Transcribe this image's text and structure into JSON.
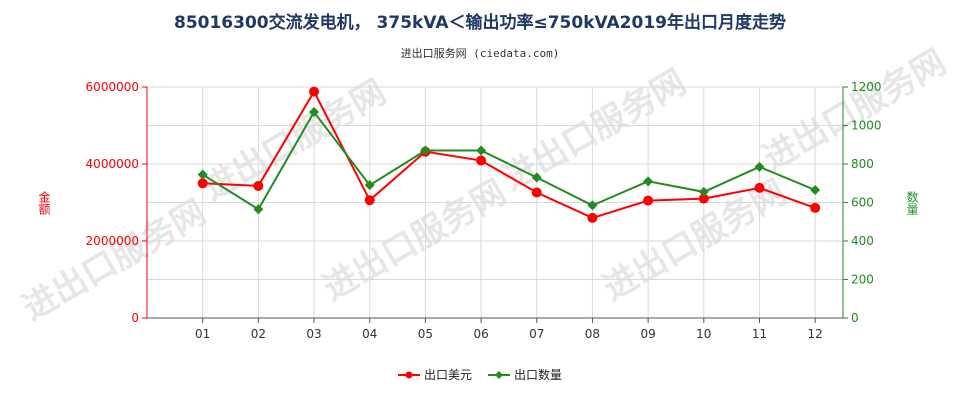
{
  "chart_data": {
    "type": "line",
    "title": "85016300交流发电机， 375kVA＜输出功率≤750kVA2019年出口月度走势",
    "subtitle": "进出口服务网 (ciedata.com)",
    "categories": [
      "01",
      "02",
      "03",
      "04",
      "05",
      "06",
      "07",
      "08",
      "09",
      "10",
      "11",
      "12"
    ],
    "y_left": {
      "label": "金额",
      "min": 0,
      "max": 6000000,
      "ticks": [
        0,
        2000000,
        4000000,
        6000000
      ],
      "tick_labels": [
        "0",
        "2000000",
        "4000000",
        "6000000"
      ]
    },
    "y_right": {
      "label": "数量",
      "min": 0,
      "max": 1200,
      "ticks": [
        0,
        200,
        400,
        600,
        800,
        1000,
        1200
      ],
      "tick_labels": [
        "0",
        "200",
        "400",
        "600",
        "800",
        "1000",
        "1200"
      ]
    },
    "series": [
      {
        "name": "出口美元",
        "axis": "left",
        "color": "#ff0000",
        "values": [
          3500000,
          3430000,
          5880000,
          3060000,
          4320000,
          4090000,
          3260000,
          2600000,
          3050000,
          3100000,
          3380000,
          2860000
        ]
      },
      {
        "name": "出口数量",
        "axis": "right",
        "color": "#228b22",
        "values": [
          745,
          565,
          1070,
          690,
          870,
          870,
          730,
          585,
          710,
          655,
          785,
          665
        ]
      }
    ],
    "grid": true,
    "legend": "bottom",
    "watermark": "进出口服务网"
  }
}
